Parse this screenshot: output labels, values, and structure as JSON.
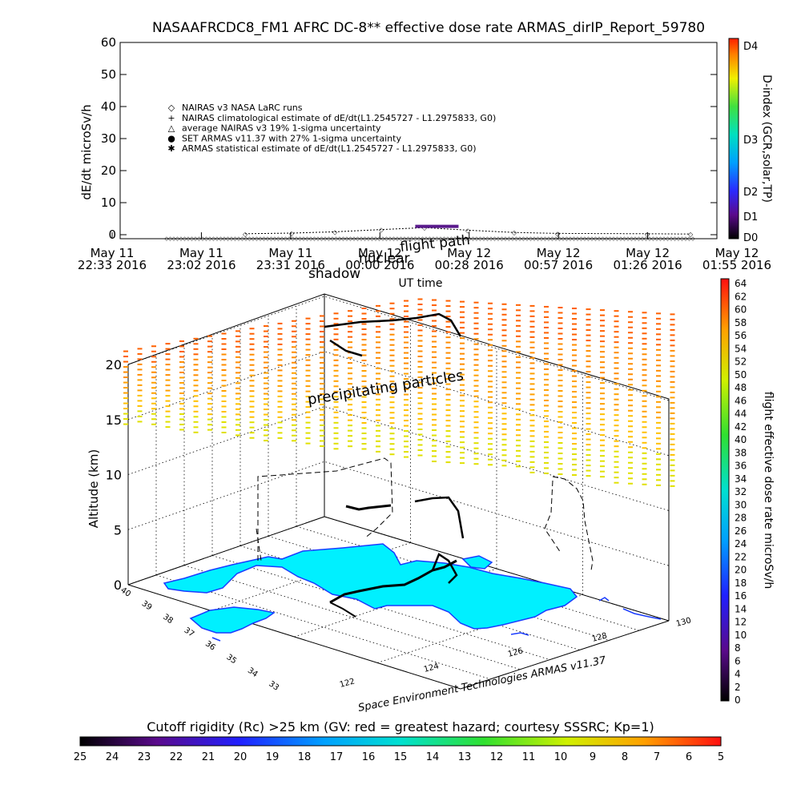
{
  "colors": {
    "background": "#ffffff",
    "land": "#00f0ff",
    "coast": "#1a3cff",
    "track": "#000000",
    "set_marker": "#5a1a8c"
  },
  "chart_data": [
    {
      "type": "line",
      "title": "NASAAFRCDC8_FM1 AFRC DC-8** effective dose rate ARMAS_dirIP_Report_59780",
      "ylabel": "dE/dt microSv/h",
      "xlabel": "UT time",
      "ylim": [
        0,
        60
      ],
      "yticks": [
        0,
        10,
        20,
        30,
        40,
        50,
        60
      ],
      "xticks": [
        {
          "date": "May 11",
          "time": "22:33 2016"
        },
        {
          "date": "May 11",
          "time": "23:02 2016"
        },
        {
          "date": "May 11",
          "time": "23:31 2016"
        },
        {
          "date": "May 12",
          "time": "00:00 2016"
        },
        {
          "date": "May 12",
          "time": "00:28 2016"
        },
        {
          "date": "May 12",
          "time": "00:57 2016"
        },
        {
          "date": "May 12",
          "time": "01:26 2016"
        },
        {
          "date": "May 12",
          "time": "01:55 2016"
        }
      ],
      "legend": [
        {
          "symbol": "◇",
          "label": "NAIRAS v3 NASA LaRC runs"
        },
        {
          "symbol": "+",
          "label": "NAIRAS climatological estimate of dE/dt(L1.2545727 - L1.2975833, G0)"
        },
        {
          "symbol": "△",
          "label": "average NAIRAS v3 19% 1-sigma uncertainty"
        },
        {
          "symbol": "●",
          "label": "SET ARMAS v11.37 with 27% 1-sigma uncertainty"
        },
        {
          "symbol": "✱",
          "label": "ARMAS statistical estimate of dE/dt(L1.2545727 - L1.2975833, G0)"
        }
      ],
      "series": [
        {
          "name": "NAIRAS v3 NASA LaRC runs",
          "x": [
            "23:16",
            "23:31",
            "23:45",
            "00:00",
            "00:14",
            "00:28",
            "00:43",
            "00:57",
            "01:26",
            "01:40"
          ],
          "values": [
            0.3,
            0.5,
            0.9,
            1.6,
            2.2,
            1.4,
            0.7,
            0.4,
            0.3,
            0.2
          ]
        },
        {
          "name": "SET ARMAS v11.37 with 27% 1-sigma uncertainty",
          "x": [
            "00:11",
            "00:25"
          ],
          "values": [
            2.6,
            2.6
          ]
        }
      ],
      "colorbar": {
        "label": "D-index (GCR,solar,TP)",
        "ticks": [
          "D4",
          "D3",
          "D2",
          "D1",
          "D0"
        ]
      },
      "annotations": [
        "shadow",
        "nuclear",
        "flight path"
      ]
    },
    {
      "type": "scatter",
      "ylabel": "Altitude (km)",
      "zticks": [
        0,
        5,
        10,
        15,
        20
      ],
      "lat_ticks": [
        40,
        39,
        38,
        37,
        36,
        35,
        34,
        33
      ],
      "lon_ticks": [
        122,
        124,
        126,
        128,
        130
      ],
      "annotation": "precipitating particles",
      "credit": "Space Environment Technologies ARMAS v11.37",
      "colorbar": {
        "label": "flight effective dose rate microSv/h",
        "ticks": [
          0,
          2,
          4,
          6,
          8,
          10,
          12,
          14,
          16,
          18,
          20,
          22,
          24,
          26,
          28,
          30,
          32,
          34,
          36,
          38,
          40,
          42,
          44,
          46,
          48,
          50,
          52,
          54,
          56,
          58,
          60,
          62,
          64
        ]
      }
    },
    {
      "type": "heatmap",
      "title": "Cutoff rigidity (Rc) >25 km (GV: red = greatest hazard; courtesy SSSRC; Kp=1)",
      "ticks": [
        25,
        24,
        23,
        22,
        21,
        20,
        19,
        18,
        17,
        16,
        15,
        14,
        13,
        12,
        11,
        10,
        9,
        8,
        7,
        6,
        5
      ]
    }
  ]
}
